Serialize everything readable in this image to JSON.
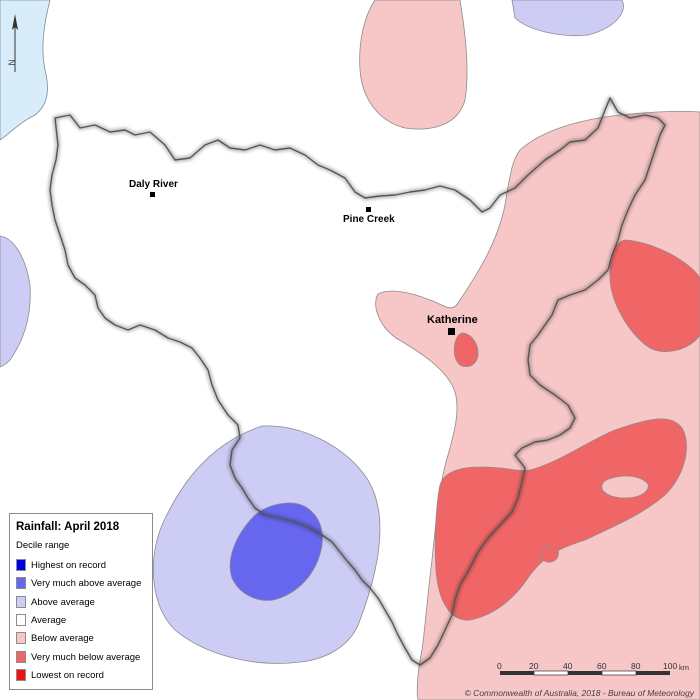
{
  "legend": {
    "title": "Rainfall: April 2018",
    "subtitle": "Decile range",
    "items": [
      {
        "label": "Highest on record",
        "color": "#0000e6"
      },
      {
        "label": "Very much above average",
        "color": "#6666ee"
      },
      {
        "label": "Above average",
        "color": "#ccccf5"
      },
      {
        "label": "Average",
        "color": "#ffffff"
      },
      {
        "label": "Below average",
        "color": "#f7c6c6"
      },
      {
        "label": "Very much below average",
        "color": "#f06666"
      },
      {
        "label": "Lowest on record",
        "color": "#ee1111"
      }
    ]
  },
  "towns": [
    {
      "name": "Daly River"
    },
    {
      "name": "Pine Creek"
    },
    {
      "name": "Katherine"
    }
  ],
  "scale": {
    "ticks": [
      "0",
      "20",
      "40",
      "60",
      "80",
      "100"
    ],
    "unit": "km"
  },
  "north_label": "N",
  "copyright": "© Commonwealth of Australia, 2018 - Bureau of Meteorology",
  "colors": {
    "ocean": "#d8ecfa",
    "outline": "#555555"
  }
}
